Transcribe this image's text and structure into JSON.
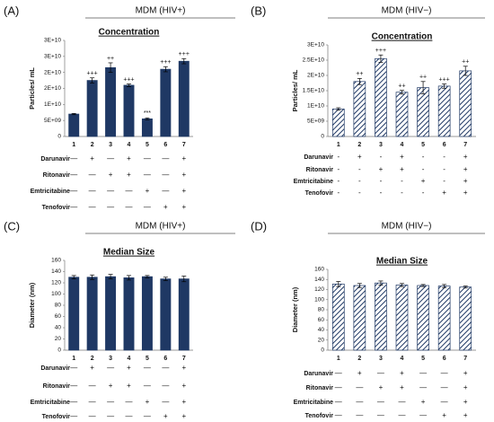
{
  "chart_data": [
    {
      "type": "bar",
      "panel": "(A)",
      "title": "MDM (HIV+)",
      "subtitle": "Concentration",
      "y_label": "Particles/ mL",
      "categories": [
        "1",
        "2",
        "3",
        "4",
        "5",
        "6",
        "7"
      ],
      "series": [
        {
          "color": "#1f3864",
          "hatch": false,
          "values": [
            7000000000,
            17500000000,
            21500000000,
            16000000000,
            5500000000,
            21000000000,
            23500000000
          ],
          "errors": [
            200000000,
            800000000,
            1500000000,
            400000000,
            300000000,
            800000000,
            800000000
          ]
        }
      ],
      "annotations": [
        null,
        "+++",
        "++",
        "+++",
        "***",
        "+++",
        "+++"
      ],
      "ylim": [
        0,
        30000000000
      ],
      "yticks": [
        0,
        {
          "value": 5000000000,
          "label": "5E+09"
        },
        {
          "value": 10000000000,
          "label": "1E+10"
        },
        {
          "value": 15000000000,
          "label": "2E+10"
        },
        {
          "value": 20000000000,
          "label": "2E+10"
        },
        {
          "value": 25000000000,
          "label": "3E+10"
        },
        {
          "value": 30000000000,
          "label": "3E+10"
        }
      ],
      "treatments": [
        {
          "name": "Darunavir",
          "marks": [
            "—",
            "+",
            "—",
            "+",
            "—",
            "—",
            "+"
          ]
        },
        {
          "name": "Ritonavir",
          "marks": [
            "—",
            "—",
            "+",
            "+",
            "—",
            "—",
            "+"
          ]
        },
        {
          "name": "Emtricitabine",
          "marks": [
            "—",
            "—",
            "—",
            "—",
            "+",
            "—",
            "+"
          ]
        },
        {
          "name": "Tenofovir",
          "marks": [
            "—",
            "—",
            "—",
            "—",
            "—",
            "+",
            "+"
          ]
        }
      ]
    },
    {
      "type": "bar",
      "panel": "(B)",
      "title": "MDM (HIV−)",
      "subtitle": "Concentration",
      "y_label": "Particles/ mL",
      "categories": [
        "1",
        "2",
        "3",
        "4",
        "5",
        "6",
        "7"
      ],
      "series": [
        {
          "color": "#1f3864",
          "hatch": true,
          "values": [
            9000000000,
            18000000000,
            25500000000,
            14500000000,
            16000000000,
            16500000000,
            21500000000
          ],
          "errors": [
            400000000,
            1000000000,
            1200000000,
            600000000,
            2000000000,
            700000000,
            1500000000
          ]
        }
      ],
      "annotations": [
        null,
        "++",
        "+++",
        "++",
        "++",
        "+++",
        "++"
      ],
      "ylim": [
        0,
        30000000000
      ],
      "yticks": [
        0,
        {
          "value": 5000000000,
          "label": "5E+09"
        },
        {
          "value": 10000000000,
          "label": "1E+10"
        },
        {
          "value": 15000000000,
          "label": "1.5E+10"
        },
        {
          "value": 20000000000,
          "label": "2E+10"
        },
        {
          "value": 25000000000,
          "label": "2.5E+10"
        },
        {
          "value": 30000000000,
          "label": "3E+10"
        }
      ],
      "treatments": [
        {
          "name": "Darunavir",
          "marks": [
            "-",
            "+",
            "-",
            "+",
            "-",
            "-",
            "+"
          ]
        },
        {
          "name": "Ritonavir",
          "marks": [
            "-",
            "-",
            "+",
            "+",
            "-",
            "-",
            "+"
          ]
        },
        {
          "name": "Emtricitabine",
          "marks": [
            "-",
            "-",
            "-",
            "-",
            "+",
            "-",
            "+"
          ]
        },
        {
          "name": "Tenofovir",
          "marks": [
            "-",
            "-",
            "-",
            "-",
            "-",
            "+",
            "+"
          ]
        }
      ]
    },
    {
      "type": "bar",
      "panel": "(C)",
      "title": "MDM (HIV+)",
      "subtitle": "Median Size",
      "y_label": "Diameter (nm)",
      "categories": [
        "1",
        "2",
        "3",
        "4",
        "5",
        "6",
        "7"
      ],
      "series": [
        {
          "color": "#1f3864",
          "hatch": false,
          "values": [
            130,
            130,
            131,
            129,
            131,
            127,
            127
          ],
          "errors": [
            3,
            4,
            4,
            4,
            2,
            3,
            5
          ]
        }
      ],
      "ylim": [
        0,
        160
      ],
      "yticks": [
        0,
        20,
        40,
        60,
        80,
        100,
        120,
        140,
        160
      ],
      "treatments": [
        {
          "name": "Darunavir",
          "marks": [
            "—",
            "+",
            "—",
            "+",
            "—",
            "—",
            "+"
          ]
        },
        {
          "name": "Ritonavir",
          "marks": [
            "—",
            "—",
            "+",
            "+",
            "—",
            "—",
            "+"
          ]
        },
        {
          "name": "Emtricitabine",
          "marks": [
            "—",
            "—",
            "—",
            "—",
            "+",
            "—",
            "+"
          ]
        },
        {
          "name": "Tenofovir",
          "marks": [
            "—",
            "—",
            "—",
            "—",
            "—",
            "+",
            "+"
          ]
        }
      ]
    },
    {
      "type": "bar",
      "panel": "(D)",
      "title": "MDM (HIV−)",
      "subtitle": "Median Size",
      "y_label": "Diameter (nm)",
      "categories": [
        "1",
        "2",
        "3",
        "4",
        "5",
        "6",
        "7"
      ],
      "series": [
        {
          "color": "#1f3864",
          "hatch": true,
          "values": [
            131,
            128,
            133,
            129,
            128,
            127,
            125
          ],
          "errors": [
            5,
            4,
            4,
            3,
            2,
            3,
            2
          ]
        }
      ],
      "ylim": [
        0,
        160
      ],
      "yticks": [
        0,
        20,
        40,
        60,
        80,
        100,
        120,
        140,
        160
      ],
      "treatments": [
        {
          "name": "Darunavir",
          "marks": [
            "—",
            "+",
            "—",
            "+",
            "—",
            "—",
            "+"
          ]
        },
        {
          "name": "Ritonavir",
          "marks": [
            "—",
            "—",
            "+",
            "+",
            "—",
            "—",
            "+"
          ]
        },
        {
          "name": "Emtricitabine",
          "marks": [
            "—",
            "—",
            "—",
            "—",
            "+",
            "—",
            "+"
          ]
        },
        {
          "name": "Tenofovir",
          "marks": [
            "—",
            "—",
            "—",
            "—",
            "—",
            "+",
            "+"
          ]
        }
      ]
    }
  ]
}
